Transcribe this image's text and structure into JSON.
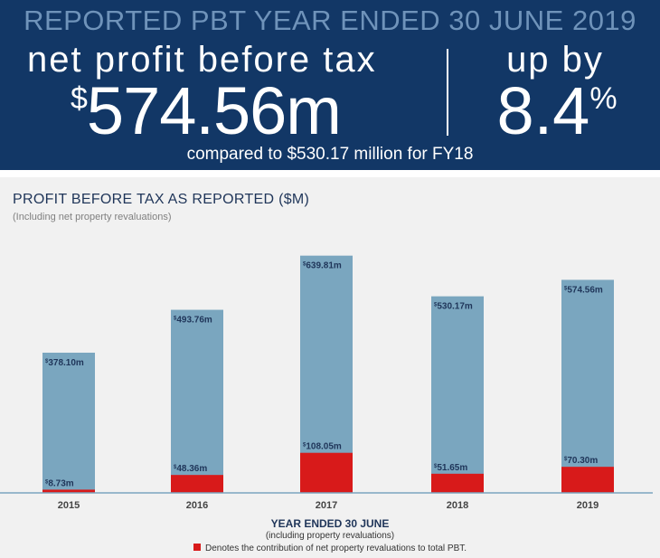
{
  "banner": {
    "title": "REPORTED PBT YEAR ENDED 30 JUNE 2019",
    "profit_label": "net profit before tax",
    "profit_currency": "$",
    "profit_value": "574.56m",
    "upby_label": "up by",
    "upby_value": "8.4",
    "upby_unit": "%",
    "comparison": "compared to $530.17 million for FY18"
  },
  "colors": {
    "banner_bg": "#123766",
    "banner_title": "#6f93ba",
    "bar_total": "#7aa6bf",
    "bar_revaluation": "#d81a1a",
    "axis": "#7aa6bf",
    "label_dark": "#1f3559"
  },
  "chart_data": {
    "type": "bar",
    "title": "PROFIT BEFORE TAX AS REPORTED ($M)",
    "subtitle": "(Including net property revaluations)",
    "xlabel": "YEAR ENDED 30 JUNE",
    "xlabel_sub": "(including property revaluations)",
    "categories": [
      "2015",
      "2016",
      "2017",
      "2018",
      "2019"
    ],
    "series": [
      {
        "name": "",
        "values": [
          378.1,
          493.76,
          639.81,
          530.17,
          574.56
        ],
        "labels": [
          "378.10m",
          "493.76m",
          "639.81m",
          "530.17m",
          "574.56m"
        ]
      },
      {
        "name": "Denotes the contribution of net property revaluations to total PBT.",
        "values": [
          8.73,
          48.36,
          108.05,
          51.65,
          70.3
        ],
        "labels": [
          "8.73m",
          "48.36m",
          "108.05m",
          "51.65m",
          "70.30m"
        ]
      }
    ],
    "label_prefix": "$",
    "ylim": [
      0,
      700
    ],
    "grid": false,
    "legend_position": "bottom-center"
  }
}
